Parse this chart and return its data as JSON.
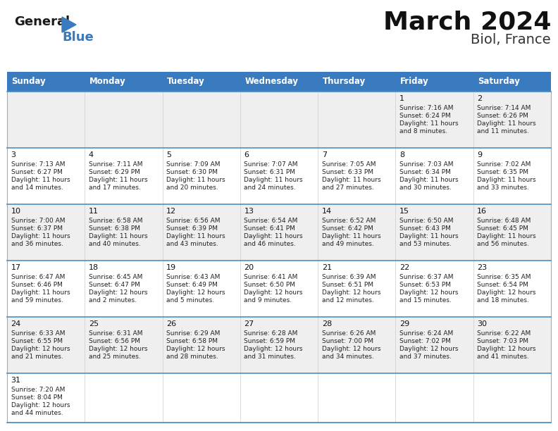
{
  "title": "March 2024",
  "subtitle": "Biol, France",
  "header_color": "#3A7BBF",
  "header_text_color": "#FFFFFF",
  "background_color": "#FFFFFF",
  "row_colors": [
    "#EFEFEF",
    "#FFFFFF",
    "#EFEFEF",
    "#FFFFFF",
    "#EFEFEF",
    "#FFFFFF"
  ],
  "divider_color": "#4A90C4",
  "cell_border_color": "#CCCCCC",
  "days_of_week": [
    "Sunday",
    "Monday",
    "Tuesday",
    "Wednesday",
    "Thursday",
    "Friday",
    "Saturday"
  ],
  "calendar_data": [
    [
      {
        "day": "",
        "sunrise": "",
        "sunset": "",
        "daylight": ""
      },
      {
        "day": "",
        "sunrise": "",
        "sunset": "",
        "daylight": ""
      },
      {
        "day": "",
        "sunrise": "",
        "sunset": "",
        "daylight": ""
      },
      {
        "day": "",
        "sunrise": "",
        "sunset": "",
        "daylight": ""
      },
      {
        "day": "",
        "sunrise": "",
        "sunset": "",
        "daylight": ""
      },
      {
        "day": "1",
        "sunrise": "7:16 AM",
        "sunset": "6:24 PM",
        "daylight": "11 hours\nand 8 minutes."
      },
      {
        "day": "2",
        "sunrise": "7:14 AM",
        "sunset": "6:26 PM",
        "daylight": "11 hours\nand 11 minutes."
      }
    ],
    [
      {
        "day": "3",
        "sunrise": "7:13 AM",
        "sunset": "6:27 PM",
        "daylight": "11 hours\nand 14 minutes."
      },
      {
        "day": "4",
        "sunrise": "7:11 AM",
        "sunset": "6:29 PM",
        "daylight": "11 hours\nand 17 minutes."
      },
      {
        "day": "5",
        "sunrise": "7:09 AM",
        "sunset": "6:30 PM",
        "daylight": "11 hours\nand 20 minutes."
      },
      {
        "day": "6",
        "sunrise": "7:07 AM",
        "sunset": "6:31 PM",
        "daylight": "11 hours\nand 24 minutes."
      },
      {
        "day": "7",
        "sunrise": "7:05 AM",
        "sunset": "6:33 PM",
        "daylight": "11 hours\nand 27 minutes."
      },
      {
        "day": "8",
        "sunrise": "7:03 AM",
        "sunset": "6:34 PM",
        "daylight": "11 hours\nand 30 minutes."
      },
      {
        "day": "9",
        "sunrise": "7:02 AM",
        "sunset": "6:35 PM",
        "daylight": "11 hours\nand 33 minutes."
      }
    ],
    [
      {
        "day": "10",
        "sunrise": "7:00 AM",
        "sunset": "6:37 PM",
        "daylight": "11 hours\nand 36 minutes."
      },
      {
        "day": "11",
        "sunrise": "6:58 AM",
        "sunset": "6:38 PM",
        "daylight": "11 hours\nand 40 minutes."
      },
      {
        "day": "12",
        "sunrise": "6:56 AM",
        "sunset": "6:39 PM",
        "daylight": "11 hours\nand 43 minutes."
      },
      {
        "day": "13",
        "sunrise": "6:54 AM",
        "sunset": "6:41 PM",
        "daylight": "11 hours\nand 46 minutes."
      },
      {
        "day": "14",
        "sunrise": "6:52 AM",
        "sunset": "6:42 PM",
        "daylight": "11 hours\nand 49 minutes."
      },
      {
        "day": "15",
        "sunrise": "6:50 AM",
        "sunset": "6:43 PM",
        "daylight": "11 hours\nand 53 minutes."
      },
      {
        "day": "16",
        "sunrise": "6:48 AM",
        "sunset": "6:45 PM",
        "daylight": "11 hours\nand 56 minutes."
      }
    ],
    [
      {
        "day": "17",
        "sunrise": "6:47 AM",
        "sunset": "6:46 PM",
        "daylight": "11 hours\nand 59 minutes."
      },
      {
        "day": "18",
        "sunrise": "6:45 AM",
        "sunset": "6:47 PM",
        "daylight": "12 hours\nand 2 minutes."
      },
      {
        "day": "19",
        "sunrise": "6:43 AM",
        "sunset": "6:49 PM",
        "daylight": "12 hours\nand 5 minutes."
      },
      {
        "day": "20",
        "sunrise": "6:41 AM",
        "sunset": "6:50 PM",
        "daylight": "12 hours\nand 9 minutes."
      },
      {
        "day": "21",
        "sunrise": "6:39 AM",
        "sunset": "6:51 PM",
        "daylight": "12 hours\nand 12 minutes."
      },
      {
        "day": "22",
        "sunrise": "6:37 AM",
        "sunset": "6:53 PM",
        "daylight": "12 hours\nand 15 minutes."
      },
      {
        "day": "23",
        "sunrise": "6:35 AM",
        "sunset": "6:54 PM",
        "daylight": "12 hours\nand 18 minutes."
      }
    ],
    [
      {
        "day": "24",
        "sunrise": "6:33 AM",
        "sunset": "6:55 PM",
        "daylight": "12 hours\nand 21 minutes."
      },
      {
        "day": "25",
        "sunrise": "6:31 AM",
        "sunset": "6:56 PM",
        "daylight": "12 hours\nand 25 minutes."
      },
      {
        "day": "26",
        "sunrise": "6:29 AM",
        "sunset": "6:58 PM",
        "daylight": "12 hours\nand 28 minutes."
      },
      {
        "day": "27",
        "sunrise": "6:28 AM",
        "sunset": "6:59 PM",
        "daylight": "12 hours\nand 31 minutes."
      },
      {
        "day": "28",
        "sunrise": "6:26 AM",
        "sunset": "7:00 PM",
        "daylight": "12 hours\nand 34 minutes."
      },
      {
        "day": "29",
        "sunrise": "6:24 AM",
        "sunset": "7:02 PM",
        "daylight": "12 hours\nand 37 minutes."
      },
      {
        "day": "30",
        "sunrise": "6:22 AM",
        "sunset": "7:03 PM",
        "daylight": "12 hours\nand 41 minutes."
      }
    ],
    [
      {
        "day": "31",
        "sunrise": "7:20 AM",
        "sunset": "8:04 PM",
        "daylight": "12 hours\nand 44 minutes."
      },
      {
        "day": "",
        "sunrise": "",
        "sunset": "",
        "daylight": ""
      },
      {
        "day": "",
        "sunrise": "",
        "sunset": "",
        "daylight": ""
      },
      {
        "day": "",
        "sunrise": "",
        "sunset": "",
        "daylight": ""
      },
      {
        "day": "",
        "sunrise": "",
        "sunset": "",
        "daylight": ""
      },
      {
        "day": "",
        "sunrise": "",
        "sunset": "",
        "daylight": ""
      },
      {
        "day": "",
        "sunrise": "",
        "sunset": "",
        "daylight": ""
      }
    ]
  ]
}
